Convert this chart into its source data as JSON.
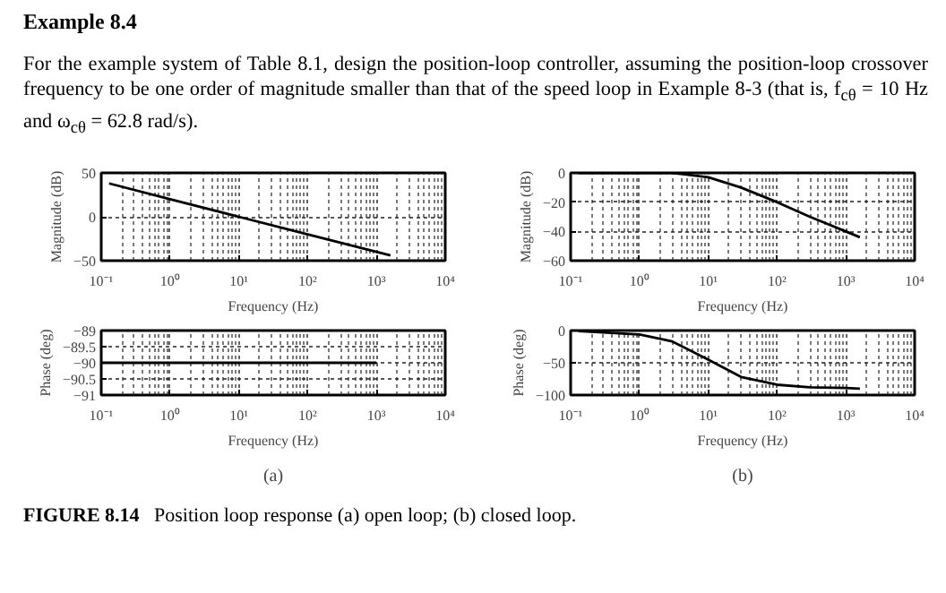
{
  "chart_data": [
    {
      "type": "line",
      "title": "Example 8.4",
      "subtitle": "For the example system of Table 8.1, design the position-loop controller, assuming the position-loop crossover frequency to be one order of magnitude smaller than that of the speed loop in Example 8-3 (that is, f$_{cθ}$ = 10 Hz and ω$_{cθ}$ = 62.8 rad/s).",
      "xlabel": "Frequency (Hz)",
      "ylabel": "Magnitude (dB)",
      "log": "x",
      "grid": true,
      "line_style": "solid",
      "xlim": [
        0.1,
        10000
      ],
      "xticks": [
        {
          "value": 0.1,
          "label": "10⁻¹"
        },
        {
          "value": 1,
          "label": "10⁰"
        },
        {
          "value": 10,
          "label": "10¹"
        },
        {
          "value": 100,
          "label": "10²"
        },
        {
          "value": 1000,
          "label": "10³"
        },
        {
          "value": 10000,
          "label": "10⁴"
        }
      ],
      "ylim": [
        -50,
        50
      ],
      "yticks": [
        {
          "value": -50,
          "label": "−50"
        },
        0,
        50
      ],
      "series": [
        {
          "color": "#000000",
          "x": [
            0.13,
            1,
            10,
            100,
            1000,
            1600
          ],
          "values": [
            38,
            20,
            0,
            -20,
            -40,
            -44
          ]
        }
      ]
    },
    {
      "type": "line",
      "xlabel": "Frequency (Hz)",
      "ylabel": "Magnitude (dB)",
      "log": "x",
      "grid": true,
      "line_style": "solid",
      "xlim": [
        0.1,
        10000
      ],
      "xticks": [
        {
          "value": 0.1,
          "label": "10⁻¹"
        },
        {
          "value": 1,
          "label": "10⁰"
        },
        {
          "value": 10,
          "label": "10¹"
        },
        {
          "value": 100,
          "label": "10²"
        },
        {
          "value": 1000,
          "label": "10³"
        },
        {
          "value": 10000,
          "label": "10⁴"
        }
      ],
      "ylim": [
        -60,
        0
      ],
      "yticks": [
        {
          "value": -60,
          "label": "−60"
        },
        {
          "value": -40,
          "label": "−40"
        },
        {
          "value": -20,
          "label": "−20"
        },
        0
      ],
      "series": [
        {
          "color": "#000000",
          "x": [
            0.13,
            1,
            3,
            10,
            30,
            100,
            300,
            1000,
            1600
          ],
          "values": [
            0,
            0,
            0,
            -3,
            -10,
            -20,
            -30,
            -40,
            -44
          ]
        }
      ]
    },
    {
      "type": "line",
      "xlabel": "Frequency (Hz)",
      "ylabel": "Phase (deg)",
      "log": "x",
      "grid": true,
      "line_style": "solid",
      "annotations": [
        "(a)"
      ],
      "xlim": [
        0.1,
        10000
      ],
      "xticks": [
        {
          "value": 0.1,
          "label": "10⁻¹"
        },
        {
          "value": 1,
          "label": "10⁰"
        },
        {
          "value": 10,
          "label": "10¹"
        },
        {
          "value": 100,
          "label": "10²"
        },
        {
          "value": 1000,
          "label": "10³"
        },
        {
          "value": 10000,
          "label": "10⁴"
        }
      ],
      "ylim": [
        -91,
        -89
      ],
      "yticks": [
        {
          "value": -91,
          "label": "−91"
        },
        {
          "value": -90.5,
          "label": "−90.5"
        },
        {
          "value": -90,
          "label": "−90"
        },
        {
          "value": -89.5,
          "label": "−89.5"
        },
        {
          "value": -89,
          "label": "−89"
        }
      ],
      "series": [
        {
          "color": "#000000",
          "x": [
            0.1,
            1,
            10,
            100,
            1000
          ],
          "values": [
            -90,
            -90,
            -90,
            -90,
            -90
          ]
        }
      ]
    },
    {
      "type": "line",
      "xlabel": "Frequency (Hz)",
      "ylabel": "Phase (deg)",
      "log": "x",
      "grid": true,
      "line_style": "solid",
      "annotations": [
        "(b)",
        "FIGURE 8.14 Position loop response (a) open loop; (b) closed loop."
      ],
      "xlim": [
        0.1,
        10000
      ],
      "xticks": [
        {
          "value": 0.1,
          "label": "10⁻¹"
        },
        {
          "value": 1,
          "label": "10⁰"
        },
        {
          "value": 10,
          "label": "10¹"
        },
        {
          "value": 100,
          "label": "10²"
        },
        {
          "value": 1000,
          "label": "10³"
        },
        {
          "value": 10000,
          "label": "10⁴"
        }
      ],
      "ylim": [
        -100,
        0
      ],
      "yticks": [
        {
          "value": -100,
          "label": "−100"
        },
        {
          "value": -50,
          "label": "−50"
        },
        0
      ],
      "series": [
        {
          "color": "#000000",
          "x": [
            0.13,
            1,
            3,
            10,
            30,
            100,
            300,
            1000,
            1600
          ],
          "values": [
            -1,
            -6,
            -17,
            -45,
            -72,
            -84,
            -88,
            -89,
            -90
          ]
        }
      ]
    }
  ]
}
